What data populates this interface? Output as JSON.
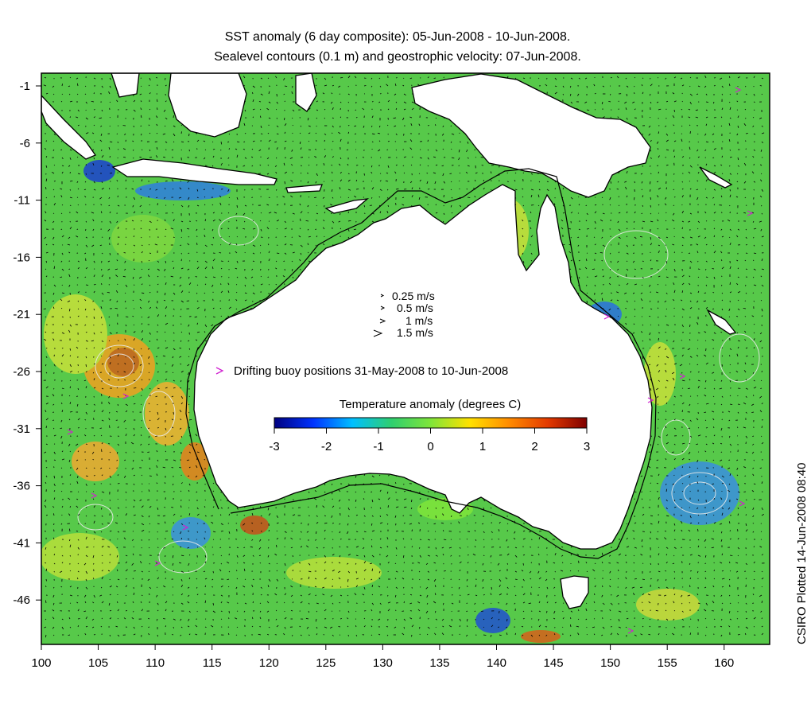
{
  "title_line1": "SST anomaly (6 day composite): 05-Jun-2008 - 10-Jun-2008.",
  "title_line2": "Sealevel contours (0.1 m) and geostrophic velocity: 07-Jun-2008.",
  "credit": "CSIRO Plotted 14-Jun-2008 08:40",
  "x_ticks": [
    "100",
    "105",
    "110",
    "115",
    "120",
    "125",
    "130",
    "135",
    "140",
    "145",
    "150",
    "155",
    "160"
  ],
  "y_ticks": [
    "-1",
    "-6",
    "-11",
    "-16",
    "-21",
    "-26",
    "-31",
    "-36",
    "-41",
    "-46"
  ],
  "velocity_key": [
    "0.25 m/s",
    "0.5 m/s",
    "1 m/s",
    "1.5 m/s"
  ],
  "buoy_legend": "Drifting buoy positions 31-May-2008 to 10-Jun-2008",
  "colorbar": {
    "title": "Temperature anomaly (degrees C)",
    "ticks": [
      "-3",
      "-2",
      "-1",
      "0",
      "1",
      "2",
      "3"
    ],
    "colors": [
      "#00007f",
      "#0033ff",
      "#00bfff",
      "#2fcf6f",
      "#7fe53a",
      "#ffe100",
      "#ff8c00",
      "#e33a00",
      "#7f0000"
    ]
  },
  "colors": {
    "ocean": "#57c94a",
    "land": "#ffffff",
    "buoy": "#d020d0"
  }
}
